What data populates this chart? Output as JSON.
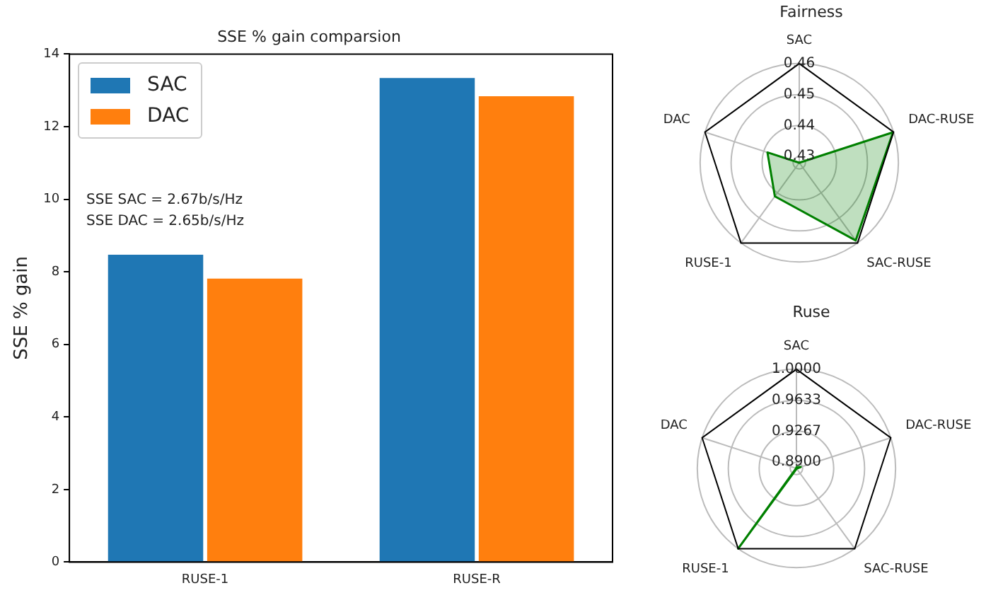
{
  "chart_data": [
    {
      "type": "bar",
      "title": "SSE % gain comparsion",
      "ylabel": "SSE % gain",
      "categories": [
        "RUSE-1",
        "RUSE-R"
      ],
      "series": [
        {
          "name": "SAC",
          "color": "#1f77b4",
          "values": [
            8.47,
            13.34
          ]
        },
        {
          "name": "DAC",
          "color": "#ff7f0e",
          "values": [
            7.81,
            12.84
          ]
        }
      ],
      "ylim": [
        0,
        14
      ],
      "yticks": [
        0,
        2,
        4,
        6,
        8,
        10,
        12,
        14
      ],
      "grid": false,
      "legend": "top left",
      "annotations": [
        "SSE SAC = 2.67b/s/Hz",
        "SSE DAC = 2.65b/s/Hz"
      ]
    },
    {
      "type": "radar",
      "title": "Fairness",
      "categories": [
        "SAC",
        "DAC-RUSE",
        "SAC-RUSE",
        "RUSE-1",
        "DAC"
      ],
      "series": [
        {
          "color": "#008000",
          "values": [
            0.428,
            0.4598,
            0.459,
            0.4414,
            0.4388
          ]
        }
      ],
      "ylim": [
        0.428,
        0.46
      ],
      "yticks": [
        0.43,
        0.44,
        0.45,
        0.46
      ],
      "grid": true
    },
    {
      "type": "radar",
      "title": "Ruse",
      "categories": [
        "SAC",
        "DAC-RUSE",
        "SAC-RUSE",
        "RUSE-1",
        "DAC"
      ],
      "series": [
        {
          "color": "#008000",
          "values": [
            0.884,
            0.888,
            0.883,
            1.0,
            0.883
          ]
        }
      ],
      "ylim": [
        0.8826,
        1.0
      ],
      "yticks": [
        {
          "value": 0.89,
          "label": "0.8900"
        },
        0.9267,
        0.9633,
        {
          "value": 1.0,
          "label": "1.0000"
        }
      ],
      "grid": true
    }
  ]
}
